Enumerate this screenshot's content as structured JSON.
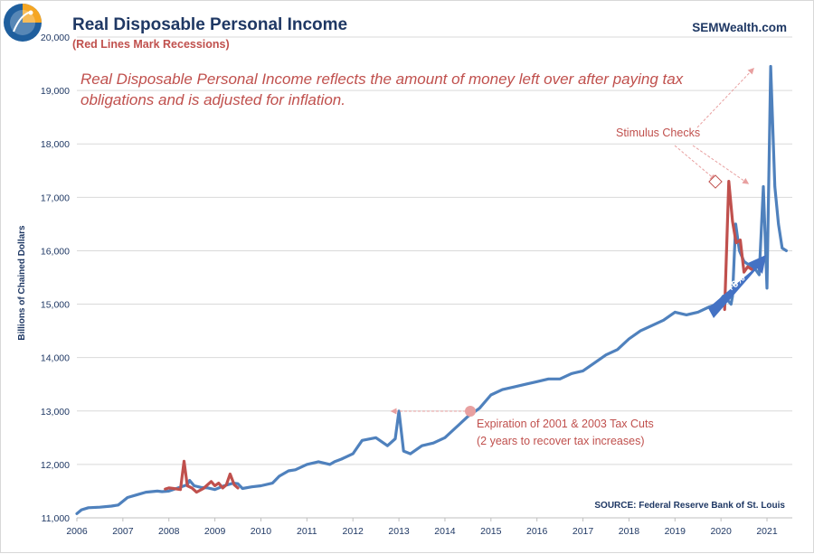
{
  "chart_data": {
    "type": "line",
    "title": "Real Disposable  Personal  Income",
    "subtitle": "(Red Lines Mark Recessions)",
    "brand": "SEMWealth.com",
    "description_lines": [
      "Real Disposable Personal Income reflects the amount of money left over after paying tax",
      "obligations and is adjusted for inflation."
    ],
    "ylabel": "Billions of Chained Dollars",
    "xlabel": "",
    "x_range": [
      2006.0,
      2021.55
    ],
    "ylim": [
      11000,
      20000
    ],
    "y_ticks": [
      11000,
      12000,
      13000,
      14000,
      15000,
      16000,
      17000,
      18000,
      19000,
      20000
    ],
    "y_tick_labels": [
      "11,000",
      "12,000",
      "13,000",
      "14,000",
      "15,000",
      "16,000",
      "17,000",
      "18,000",
      "19,000",
      "20,000"
    ],
    "x_ticks": [
      2006,
      2007,
      2008,
      2009,
      2010,
      2011,
      2012,
      2013,
      2014,
      2015,
      2016,
      2017,
      2018,
      2019,
      2020,
      2021
    ],
    "x_tick_labels": [
      "2006",
      "2007",
      "2008",
      "2009",
      "2010",
      "2011",
      "2012",
      "2013",
      "2014",
      "2015",
      "2016",
      "2017",
      "2018",
      "2019",
      "2020",
      "2021"
    ],
    "grid": true,
    "colors": {
      "main": "#4f81bd",
      "recession": "#c0504d",
      "annotation": "#e8a0a0",
      "grid": "#d9d9d9",
      "text": "#1f3864"
    },
    "series": [
      {
        "name": "Real Disposable Personal Income",
        "x": [
          2006.0,
          2006.1,
          2006.25,
          2006.5,
          2006.75,
          2006.9,
          2007.1,
          2007.3,
          2007.5,
          2007.75,
          2007.85,
          2008.0,
          2008.4,
          2008.45,
          2008.55,
          2008.7,
          2008.85,
          2009.0,
          2009.2,
          2009.4,
          2009.5,
          2009.6,
          2009.8,
          2010.0,
          2010.25,
          2010.4,
          2010.6,
          2010.75,
          2011.0,
          2011.25,
          2011.5,
          2011.6,
          2011.75,
          2012.0,
          2012.2,
          2012.5,
          2012.75,
          2012.92,
          2013.0,
          2013.1,
          2013.25,
          2013.5,
          2013.75,
          2014.0,
          2014.25,
          2014.5,
          2014.75,
          2015.0,
          2015.25,
          2015.5,
          2015.75,
          2016.0,
          2016.25,
          2016.5,
          2016.75,
          2017.0,
          2017.25,
          2017.5,
          2017.75,
          2018.0,
          2018.25,
          2018.5,
          2018.75,
          2019.0,
          2019.25,
          2019.5,
          2019.75,
          2019.92,
          2020.05,
          2020.17,
          2020.22,
          2020.25,
          2020.32,
          2020.4,
          2020.5,
          2020.58,
          2020.67,
          2020.75,
          2020.83,
          2020.92,
          2021.0,
          2021.08,
          2021.17,
          2021.25,
          2021.33,
          2021.42
        ],
        "values": [
          11080,
          11150,
          11190,
          11200,
          11220,
          11240,
          11380,
          11430,
          11480,
          11500,
          11490,
          11500,
          11620,
          11700,
          11600,
          11570,
          11560,
          11530,
          11600,
          11650,
          11640,
          11550,
          11580,
          11600,
          11650,
          11780,
          11880,
          11900,
          12000,
          12050,
          12000,
          12050,
          12100,
          12200,
          12450,
          12500,
          12350,
          12480,
          13000,
          12250,
          12200,
          12350,
          12400,
          12500,
          12700,
          12900,
          13050,
          13300,
          13400,
          13450,
          13500,
          13550,
          13600,
          13600,
          13700,
          13750,
          13900,
          14050,
          14150,
          14350,
          14500,
          14600,
          14700,
          14850,
          14800,
          14850,
          14950,
          15000,
          15150,
          15050,
          15000,
          15150,
          16500,
          16000,
          15800,
          15750,
          15700,
          15650,
          15550,
          17200,
          15300,
          19450,
          17200,
          16500,
          16050,
          16000
        ]
      },
      {
        "name": "Recession 2008-2009",
        "x": [
          2007.92,
          2008.0,
          2008.1,
          2008.25,
          2008.33,
          2008.4,
          2008.5,
          2008.6,
          2008.75,
          2008.92,
          2009.0,
          2009.08,
          2009.17,
          2009.25,
          2009.33,
          2009.42,
          2009.5
        ],
        "values": [
          11540,
          11560,
          11550,
          11530,
          12060,
          11600,
          11560,
          11480,
          11550,
          11680,
          11600,
          11650,
          11560,
          11620,
          11820,
          11620,
          11560
        ]
      },
      {
        "name": "Recession 2020",
        "x": [
          2020.08,
          2020.17,
          2020.25,
          2020.33,
          2020.42,
          2020.5,
          2020.58,
          2020.67,
          2020.75
        ],
        "values": [
          14900,
          17300,
          16550,
          16150,
          16200,
          15600,
          15700,
          15650,
          15700
        ]
      }
    ],
    "annotations": {
      "stimulus": "Stimulus Checks",
      "tax_cuts_line1": "Expiration of 2001 & 2003  Tax Cuts",
      "tax_cuts_line2": "(2 years to recover tax increases)",
      "growth_arrow": "+6%",
      "source": "SOURCE:  Federal Reserve Bank of St. Louis"
    }
  }
}
